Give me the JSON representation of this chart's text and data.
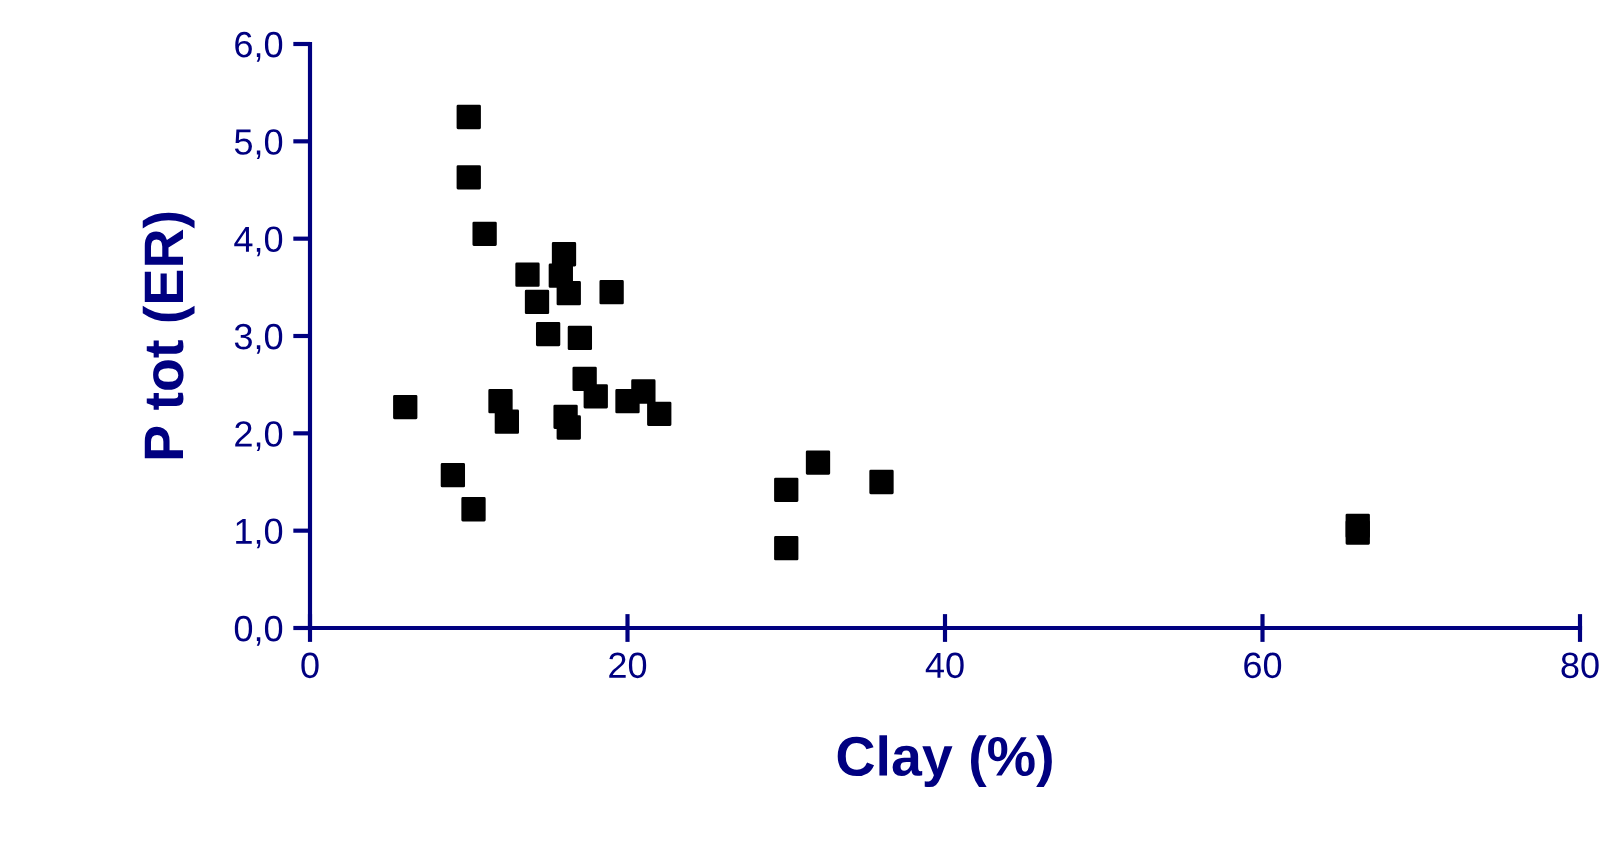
{
  "chart_data": {
    "type": "scatter",
    "xlabel": "Clay (%)",
    "ylabel": "P tot (ER)",
    "x": [
      6,
      9,
      10,
      10,
      10.3,
      11,
      12,
      12.4,
      13.7,
      14.3,
      15,
      15.8,
      16,
      16.3,
      16.1,
      16.3,
      17,
      17.3,
      18,
      19,
      20,
      21,
      22,
      30,
      30,
      32,
      36,
      66,
      66
    ],
    "series": [
      {
        "color": "#000000",
        "values": [
          2.27,
          1.57,
          5.25,
          4.63,
          1.22,
          4.05,
          2.33,
          2.12,
          3.63,
          3.35,
          3.02,
          3.62,
          3.84,
          3.44,
          2.17,
          2.06,
          2.98,
          2.56,
          2.38,
          3.45,
          2.33,
          2.43,
          2.2,
          1.42,
          0.82,
          1.7,
          1.5,
          1.05,
          0.98
        ]
      }
    ],
    "marker": "square",
    "grid": false,
    "legend": false,
    "xlim": [
      0,
      80
    ],
    "xticks": [
      0,
      20,
      40,
      60,
      80
    ],
    "ylim": [
      0,
      6
    ],
    "yticks": [
      {
        "value": 0,
        "label": "0,0"
      },
      {
        "value": 1,
        "label": "1,0"
      },
      {
        "value": 2,
        "label": "2,0"
      },
      {
        "value": 3,
        "label": "3,0"
      },
      {
        "value": 4,
        "label": "4,0"
      },
      {
        "value": 5,
        "label": "5,0"
      },
      {
        "value": 6,
        "label": "6,0"
      }
    ]
  }
}
